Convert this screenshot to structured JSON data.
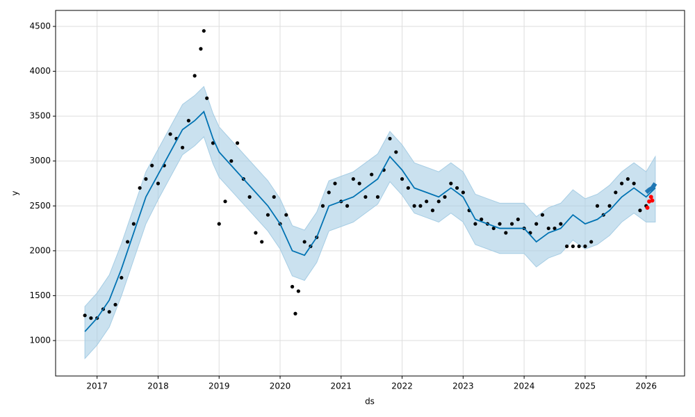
{
  "chart_data": {
    "type": "forecast",
    "x_label": "ds",
    "y_label": "y",
    "grid": true,
    "xlim": [
      2016.32,
      2026.63
    ],
    "ylim": [
      605,
      4678
    ],
    "xticks": [
      2017,
      2018,
      2019,
      2020,
      2021,
      2022,
      2023,
      2024,
      2025,
      2026
    ],
    "yticks": [
      1000,
      1500,
      2000,
      2500,
      3000,
      3500,
      4000,
      4500
    ],
    "line": {
      "color": "#0072b2",
      "x": [
        2016.8,
        2017.0,
        2017.2,
        2017.4,
        2017.6,
        2017.8,
        2018.0,
        2018.2,
        2018.4,
        2018.6,
        2018.75,
        2018.9,
        2019.0,
        2019.2,
        2019.4,
        2019.6,
        2019.8,
        2020.0,
        2020.2,
        2020.4,
        2020.6,
        2020.8,
        2021.0,
        2021.2,
        2021.4,
        2021.6,
        2021.8,
        2022.0,
        2022.2,
        2022.4,
        2022.6,
        2022.8,
        2023.0,
        2023.2,
        2023.4,
        2023.6,
        2023.8,
        2024.0,
        2024.2,
        2024.4,
        2024.6,
        2024.8,
        2025.0,
        2025.2,
        2025.4,
        2025.6,
        2025.8,
        2026.0,
        2026.15
      ],
      "values": [
        1100,
        1250,
        1450,
        1800,
        2200,
        2600,
        2850,
        3100,
        3350,
        3450,
        3550,
        3250,
        3100,
        2950,
        2800,
        2650,
        2500,
        2300,
        2000,
        1950,
        2150,
        2500,
        2550,
        2600,
        2700,
        2800,
        3050,
        2900,
        2700,
        2650,
        2600,
        2700,
        2600,
        2350,
        2300,
        2250,
        2250,
        2250,
        2100,
        2200,
        2250,
        2400,
        2300,
        2350,
        2450,
        2600,
        2700,
        2600,
        2700
      ],
      "lower": [
        800,
        950,
        1150,
        1500,
        1900,
        2300,
        2570,
        2820,
        3070,
        3170,
        3270,
        2970,
        2820,
        2670,
        2520,
        2370,
        2220,
        2020,
        1720,
        1670,
        1870,
        2220,
        2270,
        2320,
        2420,
        2520,
        2770,
        2620,
        2420,
        2370,
        2320,
        2420,
        2320,
        2070,
        2020,
        1970,
        1970,
        1970,
        1820,
        1920,
        1970,
        2120,
        2020,
        2070,
        2170,
        2320,
        2420,
        2320,
        2320
      ],
      "upper": [
        1380,
        1530,
        1730,
        2080,
        2480,
        2880,
        3130,
        3380,
        3630,
        3730,
        3830,
        3530,
        3380,
        3230,
        3080,
        2930,
        2780,
        2580,
        2280,
        2230,
        2430,
        2780,
        2830,
        2880,
        2980,
        3080,
        3330,
        3180,
        2980,
        2930,
        2880,
        2980,
        2880,
        2630,
        2580,
        2530,
        2530,
        2530,
        2380,
        2480,
        2530,
        2680,
        2580,
        2630,
        2730,
        2880,
        2980,
        2880,
        3050
      ],
      "band_color": "#a6cde4"
    },
    "forecast": {
      "color": "#1f77b4",
      "x": [
        2026.0,
        2026.05,
        2026.1,
        2026.15
      ],
      "values": [
        2650,
        2680,
        2700,
        2750
      ]
    },
    "points": {
      "color": "#000000",
      "x": [
        2016.8,
        2016.9,
        2017.0,
        2017.1,
        2017.2,
        2017.3,
        2017.4,
        2017.5,
        2017.6,
        2017.7,
        2017.8,
        2017.9,
        2018.0,
        2018.1,
        2018.2,
        2018.3,
        2018.4,
        2018.5,
        2018.6,
        2018.7,
        2018.75,
        2018.8,
        2018.9,
        2019.0,
        2019.1,
        2019.2,
        2019.3,
        2019.4,
        2019.5,
        2019.6,
        2019.7,
        2019.8,
        2019.9,
        2020.0,
        2020.1,
        2020.2,
        2020.25,
        2020.3,
        2020.4,
        2020.5,
        2020.6,
        2020.7,
        2020.8,
        2020.9,
        2021.0,
        2021.1,
        2021.2,
        2021.3,
        2021.4,
        2021.5,
        2021.6,
        2021.7,
        2021.8,
        2021.9,
        2022.0,
        2022.1,
        2022.2,
        2022.3,
        2022.4,
        2022.5,
        2022.6,
        2022.7,
        2022.8,
        2022.9,
        2023.0,
        2023.1,
        2023.2,
        2023.3,
        2023.4,
        2023.5,
        2023.6,
        2023.7,
        2023.8,
        2023.9,
        2024.0,
        2024.1,
        2024.2,
        2024.3,
        2024.4,
        2024.5,
        2024.6,
        2024.7,
        2024.8,
        2024.9,
        2025.0,
        2025.1,
        2025.2,
        2025.3,
        2025.4,
        2025.5,
        2025.6,
        2025.7,
        2025.8,
        2025.9,
        2026.0
      ],
      "values": [
        1280,
        1250,
        1250,
        1350,
        1320,
        1400,
        1700,
        2100,
        2300,
        2700,
        2800,
        2950,
        2750,
        2950,
        3300,
        3250,
        3150,
        3450,
        3950,
        4250,
        4450,
        3700,
        3200,
        2300,
        2550,
        3000,
        3200,
        2800,
        2600,
        2200,
        2100,
        2400,
        2600,
        2300,
        2400,
        1600,
        1300,
        1550,
        2100,
        2050,
        2150,
        2500,
        2650,
        2750,
        2550,
        2500,
        2800,
        2750,
        2600,
        2850,
        2600,
        2900,
        3250,
        3100,
        2800,
        2700,
        2500,
        2500,
        2550,
        2450,
        2550,
        2600,
        2750,
        2700,
        2650,
        2450,
        2300,
        2350,
        2300,
        2250,
        2300,
        2200,
        2300,
        2350,
        2250,
        2200,
        2300,
        2400,
        2250,
        2250,
        2300,
        2050,
        2050,
        2050,
        2050,
        2100,
        2500,
        2400,
        2500,
        2650,
        2750,
        2800,
        2750,
        2450,
        2500
      ]
    },
    "highlight": {
      "color": "#ff0000",
      "x": [
        2026.02,
        2026.05,
        2026.08,
        2026.1
      ],
      "values": [
        2480,
        2550,
        2600,
        2560
      ]
    }
  }
}
